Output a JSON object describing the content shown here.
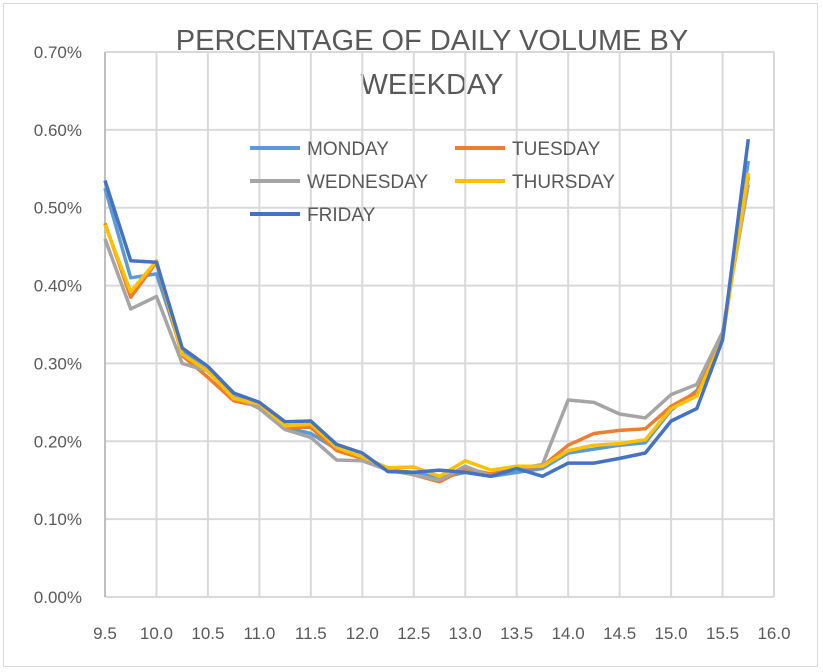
{
  "chart_data": {
    "type": "line",
    "title_lines": [
      "PERCENTAGE OF DAILY VOLUME BY",
      "WEEKDAY"
    ],
    "xlabel": "",
    "ylabel": "",
    "x": [
      9.5,
      9.75,
      10.0,
      10.25,
      10.5,
      10.75,
      11.0,
      11.25,
      11.5,
      11.75,
      12.0,
      12.25,
      12.5,
      12.75,
      13.0,
      13.25,
      13.5,
      13.75,
      14.0,
      14.25,
      14.5,
      14.75,
      15.0,
      15.25,
      15.5,
      15.75
    ],
    "xlim": [
      9.5,
      16.0
    ],
    "ylim": [
      0,
      0.7
    ],
    "y_unit": "%",
    "xticks": [
      "9.5",
      "10.0",
      "10.5",
      "11.0",
      "11.5",
      "12.0",
      "12.5",
      "13.0",
      "13.5",
      "14.0",
      "14.5",
      "15.0",
      "15.5",
      "16.0"
    ],
    "yticks": [
      "0.00%",
      "0.10%",
      "0.20%",
      "0.30%",
      "0.40%",
      "0.50%",
      "0.60%",
      "0.70%"
    ],
    "grid": true,
    "legend_placement": "top-center",
    "series": [
      {
        "name": "MONDAY",
        "color": "#5B9BD5",
        "values": [
          0.525,
          0.41,
          0.415,
          0.315,
          0.29,
          0.258,
          0.248,
          0.218,
          0.21,
          0.19,
          0.18,
          0.163,
          0.16,
          0.153,
          0.16,
          0.155,
          0.16,
          0.165,
          0.185,
          0.19,
          0.195,
          0.198,
          0.24,
          0.265,
          0.335,
          0.56
        ]
      },
      {
        "name": "TUESDAY",
        "color": "#ED7D31",
        "values": [
          0.48,
          0.385,
          0.43,
          0.31,
          0.282,
          0.252,
          0.245,
          0.218,
          0.218,
          0.188,
          0.178,
          0.165,
          0.157,
          0.148,
          0.165,
          0.158,
          0.165,
          0.168,
          0.195,
          0.21,
          0.214,
          0.216,
          0.245,
          0.263,
          0.335,
          0.54
        ]
      },
      {
        "name": "WEDNESDAY",
        "color": "#A5A5A5",
        "values": [
          0.46,
          0.37,
          0.386,
          0.3,
          0.29,
          0.258,
          0.242,
          0.215,
          0.205,
          0.176,
          0.175,
          0.163,
          0.157,
          0.15,
          0.168,
          0.155,
          0.165,
          0.17,
          0.253,
          0.25,
          0.235,
          0.23,
          0.26,
          0.273,
          0.34,
          0.53
        ]
      },
      {
        "name": "THURSDAY",
        "color": "#FFC000",
        "values": [
          0.478,
          0.392,
          0.432,
          0.312,
          0.29,
          0.255,
          0.248,
          0.22,
          0.222,
          0.192,
          0.18,
          0.166,
          0.167,
          0.155,
          0.175,
          0.163,
          0.168,
          0.168,
          0.188,
          0.195,
          0.197,
          0.202,
          0.242,
          0.258,
          0.33,
          0.545
        ]
      },
      {
        "name": "FRIDAY",
        "color": "#4472C4",
        "values": [
          0.535,
          0.432,
          0.43,
          0.32,
          0.296,
          0.262,
          0.25,
          0.225,
          0.226,
          0.196,
          0.185,
          0.161,
          0.16,
          0.163,
          0.16,
          0.155,
          0.165,
          0.155,
          0.172,
          0.172,
          0.178,
          0.185,
          0.226,
          0.242,
          0.33,
          0.588
        ]
      }
    ]
  }
}
